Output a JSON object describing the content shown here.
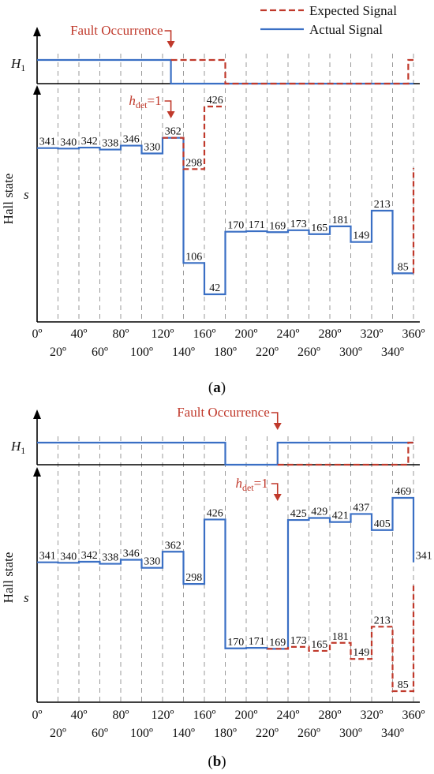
{
  "colors": {
    "expected": "#c0392b",
    "actual": "#3a6fc4",
    "axis": "#000000",
    "grid": "#9a9a9a",
    "fault": "#c0392b"
  },
  "legend": {
    "expected": "Expected Signal",
    "actual": "Actual Signal"
  },
  "x_ticks_top": [
    "0º",
    "40º",
    "80º",
    "120º",
    "160º",
    "200º",
    "240º",
    "280º",
    "320º",
    "360º"
  ],
  "x_ticks_bottom": [
    "20º",
    "60º",
    "100º",
    "140º",
    "180º",
    "220º",
    "260º",
    "300º",
    "340º"
  ],
  "chart_data": [
    {
      "type": "line",
      "title": "",
      "panel_label": "a",
      "fault_label": "Fault Occurrence",
      "hdet_main": "h",
      "hdet_sub": "det",
      "hdet_rest": "=1",
      "h1_label_main": "H",
      "h1_label_sub": "1",
      "ylabel": "Hall state",
      "y_symbol": "s",
      "xlim": [
        0,
        360
      ],
      "fault_angle": 128,
      "hdet_angle": 128,
      "h1_expected": [
        [
          0,
          1
        ],
        [
          128,
          1
        ],
        [
          180,
          0
        ],
        [
          355,
          1
        ],
        [
          360,
          1
        ]
      ],
      "h1_actual": [
        [
          0,
          1
        ],
        [
          128,
          0
        ],
        [
          360,
          0
        ]
      ],
      "expected_steps": [
        341,
        340,
        342,
        338,
        346,
        330,
        362,
        298,
        426,
        170,
        171,
        169,
        173,
        165,
        181,
        149,
        213,
        85
      ],
      "actual_steps": [
        341,
        340,
        342,
        338,
        346,
        330,
        362,
        106,
        42,
        170,
        171,
        169,
        173,
        165,
        181,
        149,
        213,
        85
      ],
      "expected_tail": 300,
      "expected_start_index": 6,
      "expected_end_index": 9,
      "step_labels": [
        {
          "index": 0,
          "value": "341"
        },
        {
          "index": 1,
          "value": "340"
        },
        {
          "index": 2,
          "value": "342"
        },
        {
          "index": 3,
          "value": "338"
        },
        {
          "index": 4,
          "value": "346"
        },
        {
          "index": 5,
          "value": "330"
        },
        {
          "index": 6,
          "value": "362"
        },
        {
          "index": 7,
          "value": "298",
          "series": "expected"
        },
        {
          "index": 8,
          "value": "426",
          "series": "expected"
        },
        {
          "index": 7,
          "value": "106",
          "series": "actual"
        },
        {
          "index": 8,
          "value": "42",
          "series": "actual"
        },
        {
          "index": 9,
          "value": "170"
        },
        {
          "index": 10,
          "value": "171"
        },
        {
          "index": 11,
          "value": "169"
        },
        {
          "index": 12,
          "value": "173"
        },
        {
          "index": 13,
          "value": "165"
        },
        {
          "index": 14,
          "value": "181"
        },
        {
          "index": 15,
          "value": "149"
        },
        {
          "index": 16,
          "value": "213"
        },
        {
          "index": 17,
          "value": "85"
        }
      ]
    },
    {
      "type": "line",
      "title": "",
      "panel_label": "b",
      "fault_label": "Fault Occurrence",
      "hdet_main": "h",
      "hdet_sub": "det",
      "hdet_rest": "=1",
      "h1_label_main": "H",
      "h1_label_sub": "1",
      "ylabel": "Hall state",
      "y_symbol": "s",
      "xlim": [
        0,
        360
      ],
      "fault_angle": 230,
      "hdet_angle": 230,
      "h1_expected": [
        [
          0,
          1
        ],
        [
          180,
          0
        ],
        [
          230,
          0
        ],
        [
          355,
          1
        ],
        [
          360,
          1
        ]
      ],
      "h1_actual": [
        [
          0,
          1
        ],
        [
          180,
          0
        ],
        [
          230,
          1
        ],
        [
          360,
          1
        ]
      ],
      "expected_steps": [
        341,
        340,
        342,
        338,
        346,
        330,
        362,
        298,
        426,
        170,
        171,
        169,
        173,
        165,
        181,
        149,
        213,
        85
      ],
      "actual_steps": [
        341,
        340,
        342,
        338,
        346,
        330,
        362,
        298,
        426,
        170,
        171,
        169,
        425,
        429,
        421,
        437,
        405,
        469,
        341
      ],
      "expected_tail": 300,
      "step_labels": [
        {
          "index": 0,
          "value": "341"
        },
        {
          "index": 1,
          "value": "340"
        },
        {
          "index": 2,
          "value": "342"
        },
        {
          "index": 3,
          "value": "338"
        },
        {
          "index": 4,
          "value": "346"
        },
        {
          "index": 5,
          "value": "330"
        },
        {
          "index": 6,
          "value": "362"
        },
        {
          "index": 7,
          "value": "298"
        },
        {
          "index": 8,
          "value": "426"
        },
        {
          "index": 9,
          "value": "170"
        },
        {
          "index": 10,
          "value": "171"
        },
        {
          "index": 11,
          "value": "169"
        },
        {
          "index": 12,
          "value": "425",
          "series": "actual"
        },
        {
          "index": 13,
          "value": "429",
          "series": "actual"
        },
        {
          "index": 14,
          "value": "421",
          "series": "actual"
        },
        {
          "index": 15,
          "value": "437",
          "series": "actual"
        },
        {
          "index": 16,
          "value": "405",
          "series": "actual"
        },
        {
          "index": 17,
          "value": "469",
          "series": "actual"
        },
        {
          "index": 18,
          "value": "341",
          "series": "actual"
        },
        {
          "index": 12,
          "value": "173",
          "series": "expected"
        },
        {
          "index": 13,
          "value": "165",
          "series": "expected"
        },
        {
          "index": 14,
          "value": "181",
          "series": "expected"
        },
        {
          "index": 15,
          "value": "149",
          "series": "expected"
        },
        {
          "index": 16,
          "value": "213",
          "series": "expected"
        },
        {
          "index": 17,
          "value": "85",
          "series": "expected"
        }
      ]
    }
  ]
}
